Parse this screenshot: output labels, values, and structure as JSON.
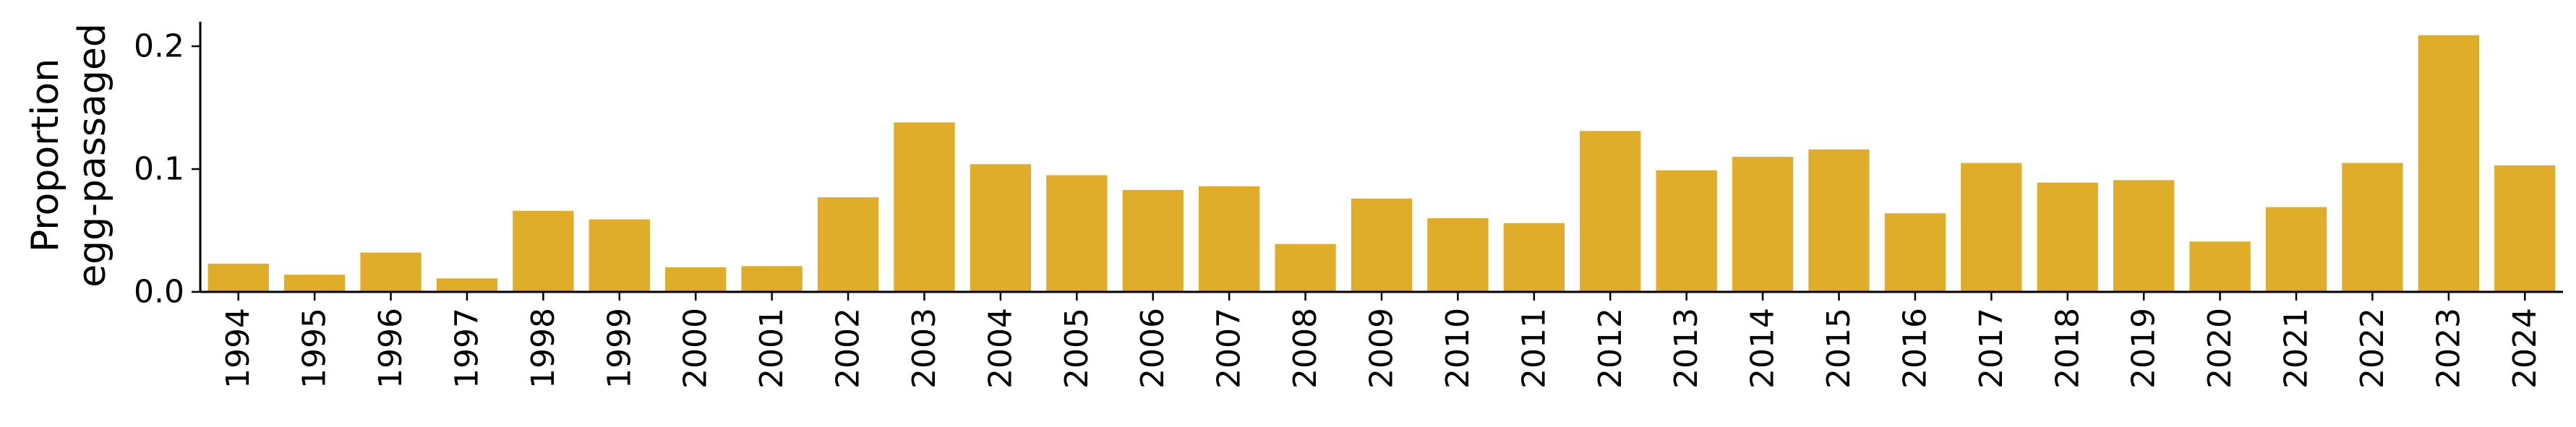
{
  "chart_data": {
    "type": "bar",
    "ylabel_lines": [
      "Proportion",
      "egg-passaged"
    ],
    "xlabel": "",
    "title": "",
    "ylim": [
      0,
      0.22
    ],
    "yticks": [
      0.0,
      0.1,
      0.2
    ],
    "ytick_labels": [
      "0.0",
      "0.1",
      "0.2"
    ],
    "bar_color": "#dfad29",
    "grid": false,
    "categories": [
      "1994",
      "1995",
      "1996",
      "1997",
      "1998",
      "1999",
      "2000",
      "2001",
      "2002",
      "2003",
      "2004",
      "2005",
      "2006",
      "2007",
      "2008",
      "2009",
      "2010",
      "2011",
      "2012",
      "2013",
      "2014",
      "2015",
      "2016",
      "2017",
      "2018",
      "2019",
      "2020",
      "2021",
      "2022",
      "2023",
      "2024"
    ],
    "values": [
      0.023,
      0.014,
      0.032,
      0.011,
      0.066,
      0.059,
      0.02,
      0.021,
      0.077,
      0.138,
      0.104,
      0.095,
      0.083,
      0.086,
      0.039,
      0.076,
      0.06,
      0.056,
      0.131,
      0.099,
      0.11,
      0.116,
      0.064,
      0.105,
      0.089,
      0.091,
      0.041,
      0.069,
      0.105,
      0.209,
      0.103
    ]
  }
}
